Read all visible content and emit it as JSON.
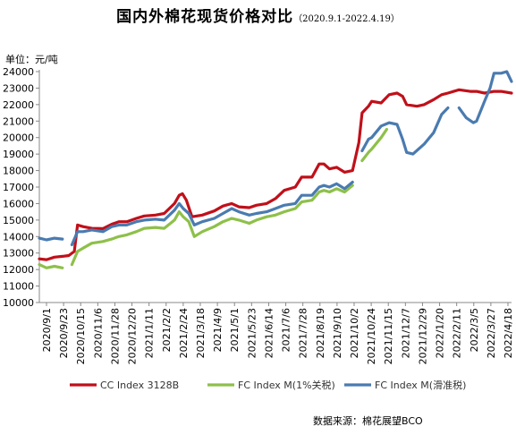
{
  "chart_data": {
    "type": "line",
    "title": "国内外棉花现货价格对比",
    "subtitle": "（2020.9.1-2022.4.19）",
    "unit_label": "单位：元/吨",
    "source": "数据来源：棉花展望BCO",
    "ylim": [
      10000,
      24000
    ],
    "yticks": [
      10000,
      11000,
      12000,
      13000,
      14000,
      15000,
      16000,
      17000,
      18000,
      19000,
      20000,
      21000,
      22000,
      23000,
      24000
    ],
    "xlim": [
      "2020-09-01",
      "2022-04-18"
    ],
    "xtick_labels": [
      "2020/9/1",
      "2020/9/23",
      "2020/10/15",
      "2020/11/6",
      "2020/11/28",
      "2020/12/20",
      "2021/1/11",
      "2021/2/2",
      "2021/2/24",
      "2021/3/18",
      "2021/4/9",
      "2021/5/1",
      "2021/5/23",
      "2021/6/14",
      "2021/7/6",
      "2021/7/28",
      "2021/8/19",
      "2021/9/10",
      "2021/10/2",
      "2021/10/24",
      "2021/11/15",
      "2021/12/7",
      "2021/12/29",
      "2022/1/20",
      "2022/2/11",
      "2022/3/5",
      "2022/3/27",
      "2022/4/18"
    ],
    "grid": false,
    "legend_position": "bottom",
    "series": [
      {
        "name": "CC Index 3128B",
        "color": "#c0101a",
        "points": [
          [
            "2020-09-01",
            12650
          ],
          [
            "2020-09-10",
            12600
          ],
          [
            "2020-09-20",
            12750
          ],
          [
            "2020-09-30",
            12800
          ],
          [
            "2020-10-08",
            12850
          ],
          [
            "2020-10-15",
            13100
          ],
          [
            "2020-10-19",
            14700
          ],
          [
            "2020-10-26",
            14600
          ],
          [
            "2020-11-06",
            14500
          ],
          [
            "2020-11-20",
            14480
          ],
          [
            "2020-12-01",
            14750
          ],
          [
            "2020-12-10",
            14900
          ],
          [
            "2020-12-20",
            14900
          ],
          [
            "2021-01-01",
            15100
          ],
          [
            "2021-01-11",
            15250
          ],
          [
            "2021-01-25",
            15300
          ],
          [
            "2021-02-05",
            15400
          ],
          [
            "2021-02-18",
            16000
          ],
          [
            "2021-02-24",
            16500
          ],
          [
            "2021-02-28",
            16600
          ],
          [
            "2021-03-05",
            16200
          ],
          [
            "2021-03-12",
            15200
          ],
          [
            "2021-03-25",
            15300
          ],
          [
            "2021-04-09",
            15550
          ],
          [
            "2021-04-20",
            15850
          ],
          [
            "2021-05-01",
            16000
          ],
          [
            "2021-05-10",
            15800
          ],
          [
            "2021-05-23",
            15750
          ],
          [
            "2021-06-01",
            15900
          ],
          [
            "2021-06-14",
            16000
          ],
          [
            "2021-06-25",
            16300
          ],
          [
            "2021-07-06",
            16800
          ],
          [
            "2021-07-20",
            17000
          ],
          [
            "2021-07-28",
            17600
          ],
          [
            "2021-08-10",
            17600
          ],
          [
            "2021-08-19",
            18400
          ],
          [
            "2021-08-25",
            18400
          ],
          [
            "2021-09-01",
            18100
          ],
          [
            "2021-09-10",
            18200
          ],
          [
            "2021-09-20",
            17900
          ],
          [
            "2021-09-30",
            18000
          ],
          [
            "2021-10-08",
            19700
          ],
          [
            "2021-10-12",
            21500
          ],
          [
            "2021-10-20",
            21900
          ],
          [
            "2021-10-24",
            22200
          ],
          [
            "2021-11-05",
            22100
          ],
          [
            "2021-11-15",
            22600
          ],
          [
            "2021-11-25",
            22700
          ],
          [
            "2021-12-02",
            22500
          ],
          [
            "2021-12-07",
            22000
          ],
          [
            "2021-12-20",
            21900
          ],
          [
            "2021-12-29",
            22000
          ],
          [
            "2022-01-10",
            22300
          ],
          [
            "2022-01-20",
            22600
          ],
          [
            "2022-01-28",
            22700
          ],
          [
            "2022-02-11",
            22900
          ],
          [
            "2022-02-25",
            22800
          ],
          [
            "2022-03-05",
            22800
          ],
          [
            "2022-03-15",
            22700
          ],
          [
            "2022-03-27",
            22800
          ],
          [
            "2022-04-05",
            22800
          ],
          [
            "2022-04-18",
            22700
          ]
        ]
      },
      {
        "name": "FC Index M(1%关税)",
        "color": "#8ec04a",
        "points": [
          [
            "2020-09-01",
            12300
          ],
          [
            "2020-09-10",
            12100
          ],
          [
            "2020-09-20",
            12200
          ],
          [
            "2020-09-30",
            12100
          ],
          [
            "2020-10-08",
            null
          ],
          [
            "2020-10-12",
            12300
          ],
          [
            "2020-10-19",
            13100
          ],
          [
            "2020-10-26",
            13300
          ],
          [
            "2020-11-06",
            13600
          ],
          [
            "2020-11-20",
            13700
          ],
          [
            "2020-12-01",
            13850
          ],
          [
            "2020-12-10",
            14000
          ],
          [
            "2020-12-20",
            14100
          ],
          [
            "2021-01-01",
            14300
          ],
          [
            "2021-01-11",
            14500
          ],
          [
            "2021-01-25",
            14550
          ],
          [
            "2021-02-05",
            14500
          ],
          [
            "2021-02-18",
            15000
          ],
          [
            "2021-02-24",
            15500
          ],
          [
            "2021-03-01",
            15200
          ],
          [
            "2021-03-08",
            14900
          ],
          [
            "2021-03-15",
            14000
          ],
          [
            "2021-03-25",
            14300
          ],
          [
            "2021-04-09",
            14600
          ],
          [
            "2021-04-20",
            14900
          ],
          [
            "2021-05-01",
            15100
          ],
          [
            "2021-05-10",
            15000
          ],
          [
            "2021-05-23",
            14800
          ],
          [
            "2021-06-01",
            15000
          ],
          [
            "2021-06-14",
            15200
          ],
          [
            "2021-06-25",
            15300
          ],
          [
            "2021-07-06",
            15500
          ],
          [
            "2021-07-20",
            15700
          ],
          [
            "2021-07-28",
            16100
          ],
          [
            "2021-08-10",
            16200
          ],
          [
            "2021-08-19",
            16700
          ],
          [
            "2021-08-25",
            16800
          ],
          [
            "2021-09-01",
            16700
          ],
          [
            "2021-09-10",
            16900
          ],
          [
            "2021-09-20",
            16700
          ],
          [
            "2021-09-30",
            17100
          ],
          [
            "2021-10-05",
            null
          ],
          [
            "2021-10-12",
            18600
          ],
          [
            "2021-10-20",
            19100
          ],
          [
            "2021-10-24",
            19300
          ],
          [
            "2021-11-05",
            20000
          ],
          [
            "2021-11-12",
            20500
          ],
          [
            "2021-11-15",
            null
          ]
        ]
      },
      {
        "name": "FC Index M(滑准税)",
        "color": "#4a7bb0",
        "points": [
          [
            "2020-09-01",
            13900
          ],
          [
            "2020-09-10",
            13800
          ],
          [
            "2020-09-20",
            13900
          ],
          [
            "2020-09-30",
            13850
          ],
          [
            "2020-10-08",
            null
          ],
          [
            "2020-10-12",
            13500
          ],
          [
            "2020-10-19",
            14300
          ],
          [
            "2020-10-26",
            14300
          ],
          [
            "2020-11-06",
            14400
          ],
          [
            "2020-11-20",
            14300
          ],
          [
            "2020-12-01",
            14600
          ],
          [
            "2020-12-10",
            14700
          ],
          [
            "2020-12-20",
            14700
          ],
          [
            "2021-01-01",
            14900
          ],
          [
            "2021-01-11",
            15000
          ],
          [
            "2021-01-25",
            15050
          ],
          [
            "2021-02-05",
            15000
          ],
          [
            "2021-02-18",
            15600
          ],
          [
            "2021-02-24",
            16000
          ],
          [
            "2021-03-01",
            15700
          ],
          [
            "2021-03-08",
            15400
          ],
          [
            "2021-03-15",
            14700
          ],
          [
            "2021-03-25",
            14900
          ],
          [
            "2021-04-09",
            15100
          ],
          [
            "2021-04-20",
            15400
          ],
          [
            "2021-05-01",
            15700
          ],
          [
            "2021-05-10",
            15500
          ],
          [
            "2021-05-23",
            15300
          ],
          [
            "2021-06-01",
            15400
          ],
          [
            "2021-06-14",
            15500
          ],
          [
            "2021-06-25",
            15700
          ],
          [
            "2021-07-06",
            15900
          ],
          [
            "2021-07-20",
            16000
          ],
          [
            "2021-07-28",
            16500
          ],
          [
            "2021-08-10",
            16500
          ],
          [
            "2021-08-19",
            17000
          ],
          [
            "2021-08-25",
            17100
          ],
          [
            "2021-09-01",
            17000
          ],
          [
            "2021-09-10",
            17200
          ],
          [
            "2021-09-20",
            16900
          ],
          [
            "2021-09-30",
            17300
          ],
          [
            "2021-10-05",
            null
          ],
          [
            "2021-10-12",
            19200
          ],
          [
            "2021-10-20",
            19900
          ],
          [
            "2021-10-24",
            20000
          ],
          [
            "2021-11-05",
            20700
          ],
          [
            "2021-11-15",
            20900
          ],
          [
            "2021-11-25",
            20800
          ],
          [
            "2021-12-02",
            19900
          ],
          [
            "2021-12-07",
            19100
          ],
          [
            "2021-12-15",
            19000
          ],
          [
            "2021-12-29",
            19600
          ],
          [
            "2022-01-10",
            20300
          ],
          [
            "2022-01-20",
            21400
          ],
          [
            "2022-01-28",
            21800
          ],
          [
            "2022-02-05",
            null
          ],
          [
            "2022-02-11",
            21800
          ],
          [
            "2022-02-20",
            21200
          ],
          [
            "2022-03-01",
            20900
          ],
          [
            "2022-03-05",
            21000
          ],
          [
            "2022-03-15",
            22200
          ],
          [
            "2022-03-22",
            23000
          ],
          [
            "2022-03-27",
            23900
          ],
          [
            "2022-04-05",
            23900
          ],
          [
            "2022-04-12",
            24000
          ],
          [
            "2022-04-18",
            23400
          ]
        ]
      }
    ]
  }
}
